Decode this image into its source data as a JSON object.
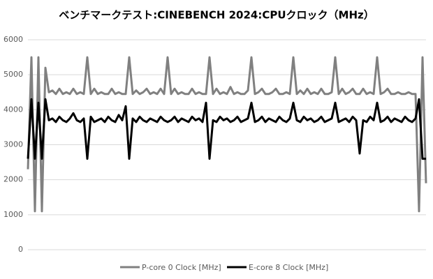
{
  "chart_data": {
    "type": "line",
    "title": "ベンチマークテスト:CINEBENCH 2024:CPUクロック（MHz）",
    "ylim": [
      0,
      6000
    ],
    "yticks": [
      0,
      1000,
      2000,
      3000,
      4000,
      5000,
      6000
    ],
    "grid": true,
    "legend": "bottom",
    "series": [
      {
        "name": "P-core 0 Clock [MHz]",
        "color": "#808080",
        "values": [
          2300,
          5500,
          1100,
          5500,
          1100,
          5200,
          4500,
          4550,
          4450,
          4600,
          4450,
          4500,
          4450,
          4600,
          4450,
          4500,
          4450,
          5500,
          4450,
          4600,
          4450,
          4500,
          4450,
          4450,
          4600,
          4450,
          4500,
          4450,
          4450,
          5500,
          4450,
          4550,
          4450,
          4500,
          4600,
          4450,
          4500,
          4450,
          4600,
          4450,
          5500,
          4450,
          4600,
          4450,
          4500,
          4450,
          4450,
          4600,
          4450,
          4500,
          4450,
          4450,
          5500,
          4450,
          4600,
          4450,
          4500,
          4450,
          4650,
          4450,
          4500,
          4450,
          4450,
          4550,
          5500,
          4450,
          4500,
          4600,
          4450,
          4450,
          4500,
          4600,
          4450,
          4450,
          4500,
          4450,
          5500,
          4450,
          4550,
          4450,
          4600,
          4450,
          4500,
          4450,
          4600,
          4450,
          4450,
          4500,
          5500,
          4450,
          4600,
          4450,
          4500,
          4600,
          4450,
          4450,
          4600,
          4450,
          4500,
          4450,
          5500,
          4450,
          4500,
          4600,
          4450,
          4450,
          4500,
          4450,
          4450,
          4500,
          4450,
          4450,
          1100,
          5500,
          1900
        ]
      },
      {
        "name": "E-core 8 Clock [MHz]",
        "color": "#000000",
        "values": [
          2600,
          4300,
          2600,
          4200,
          2600,
          4300,
          3700,
          3750,
          3650,
          3800,
          3700,
          3650,
          3750,
          3900,
          3700,
          3650,
          3750,
          2600,
          3800,
          3650,
          3700,
          3750,
          3650,
          3800,
          3700,
          3650,
          3850,
          3700,
          4100,
          2600,
          3750,
          3650,
          3800,
          3700,
          3650,
          3750,
          3700,
          3650,
          3800,
          3700,
          3650,
          3700,
          3800,
          3650,
          3750,
          3700,
          3650,
          3800,
          3700,
          3750,
          3650,
          4200,
          2600,
          3700,
          3650,
          3800,
          3700,
          3750,
          3650,
          3700,
          3800,
          3650,
          3700,
          3750,
          4200,
          3650,
          3700,
          3800,
          3650,
          3750,
          3700,
          3650,
          3800,
          3700,
          3650,
          3750,
          4200,
          3700,
          3650,
          3800,
          3700,
          3750,
          3650,
          3700,
          3800,
          3650,
          3700,
          3750,
          4200,
          3650,
          3700,
          3750,
          3650,
          3800,
          3700,
          2750,
          3700,
          3650,
          3800,
          3700,
          4200,
          3650,
          3700,
          3800,
          3650,
          3750,
          3700,
          3650,
          3800,
          3700,
          3650,
          3750,
          4300,
          2600,
          2600
        ]
      }
    ]
  }
}
